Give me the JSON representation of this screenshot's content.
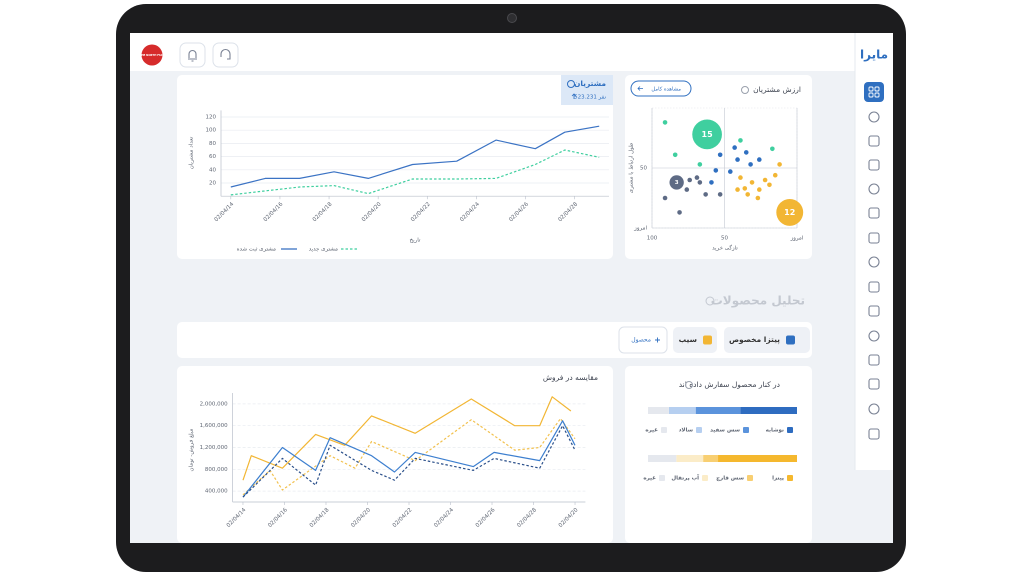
{
  "header": {
    "brand": "مایرا",
    "avatar": "THE NORTH FACE"
  },
  "section_title": "تحلیل محصولات",
  "filters": {
    "items": [
      "پیتزا مخصوص",
      "سیب"
    ],
    "add": "محصول"
  },
  "chart_data": [
    {
      "type": "line",
      "title": "مشتریان",
      "total": "523.231 نفر",
      "x_label": "تاریخ",
      "y_label": "تعداد مشتریان",
      "x": [
        14,
        15.4,
        16.8,
        18.2,
        19.6,
        21.4,
        23.2,
        24.8,
        26.4,
        27.6,
        29
      ],
      "xlim": [
        13.6,
        29.4
      ],
      "xticks": [
        {
          "value": 14,
          "label": "02/04/14"
        },
        {
          "value": 16,
          "label": "02/04/16"
        },
        {
          "value": 18,
          "label": "02/04/18"
        },
        {
          "value": 20,
          "label": "02/04/20"
        },
        {
          "value": 22,
          "label": "02/04/22"
        },
        {
          "value": 24,
          "label": "02/04/24"
        },
        {
          "value": 26,
          "label": "02/04/26"
        },
        {
          "value": 28,
          "label": "02/04/28"
        }
      ],
      "ylim": [
        0,
        130
      ],
      "yticks": [
        20,
        40,
        60,
        80,
        100,
        120
      ],
      "grid": true,
      "grid_style": "solid",
      "series": [
        {
          "name": "مشتری ثبت شده",
          "color": "#3b73c4",
          "dash": false,
          "values": [
            14,
            27,
            27,
            37,
            27,
            48,
            53,
            85,
            72,
            97,
            106
          ]
        },
        {
          "name": "مشتری جدید",
          "color": "#3fcf9f",
          "dash": true,
          "values": [
            2,
            8,
            14,
            16,
            4,
            26,
            26,
            27,
            48,
            70,
            59
          ]
        }
      ]
    },
    {
      "type": "scatter",
      "title": "ارزش مشتریان",
      "button": "مشاهده کامل",
      "x_label": "تازگی خرید",
      "y_label": "طول ارتباط با مشتری",
      "xlim": [
        100,
        0
      ],
      "xticks": [
        100,
        50,
        {
          "value": 0,
          "label": "امروز"
        }
      ],
      "ylim": [
        0,
        100
      ],
      "yticks": [
        {
          "value": 0,
          "label": "امروز"
        },
        50
      ],
      "grid": true,
      "series": [
        {
          "color": "#3fcf9f",
          "x": [
            91,
            84,
            67,
            39,
            17
          ],
          "values": [
            88,
            61,
            53,
            73,
            66
          ]
        },
        {
          "color": "#2f6fc0",
          "x": [
            41,
            35,
            53,
            46,
            32,
            26,
            43,
            56,
            59
          ],
          "values": [
            57,
            63,
            61,
            47,
            53,
            57,
            67,
            48,
            38
          ]
        },
        {
          "color": "#5e6b85",
          "x": [
            91,
            81,
            74,
            67,
            63,
            69,
            76,
            53
          ],
          "values": [
            25,
            13,
            40,
            38,
            28,
            42,
            32,
            28
          ]
        },
        {
          "color": "#f2b634",
          "x": [
            39,
            36,
            31,
            26,
            22,
            19,
            15,
            34,
            27,
            41,
            12
          ],
          "values": [
            42,
            33,
            38,
            32,
            40,
            36,
            44,
            28,
            25,
            32,
            53
          ]
        }
      ],
      "bubbles": {
        "x": [
          62,
          83,
          5
        ],
        "values": [
          78,
          38,
          13
        ],
        "size": [
          15,
          3,
          12
        ],
        "colors": [
          "#3fcf9f",
          "#5e6b85",
          "#f2b634"
        ]
      }
    },
    {
      "type": "line",
      "title": "مقایسه در فروش",
      "y_label": "مبلغ فروش- تومان",
      "xlim": [
        13.5,
        30.5
      ],
      "xticks": [
        {
          "value": 14,
          "label": "02/04/14"
        },
        {
          "value": 16,
          "label": "02/04/16"
        },
        {
          "value": 18,
          "label": "02/04/18"
        },
        {
          "value": 20,
          "label": "02/04/20"
        },
        {
          "value": 22,
          "label": "02/04/22"
        },
        {
          "value": 24,
          "label": "02/04/24"
        },
        {
          "value": 26,
          "label": "02/04/26"
        },
        {
          "value": 28,
          "label": "02/04/28"
        },
        {
          "value": 30,
          "label": "02/04/20"
        }
      ],
      "ylim": [
        200000,
        2200000
      ],
      "yticks": [
        {
          "value": 400000,
          "label": "400,000"
        },
        {
          "value": 800000,
          "label": "800,000"
        },
        {
          "value": 1200000,
          "label": "1,200,000"
        },
        {
          "value": 1600000,
          "label": "1,600,000"
        },
        {
          "value": 2000000,
          "label": "2,000,000"
        }
      ],
      "grid": true,
      "grid_style": "dashed",
      "series": [
        {
          "color": "#f2b634",
          "dash": false,
          "x": [
            14,
            14.4,
            15.9,
            17.5,
            18.9,
            20.2,
            22.3,
            25,
            27.1,
            28.3,
            28.9,
            29.8
          ],
          "values": [
            600000,
            1050000,
            820000,
            1440000,
            1240000,
            1780000,
            1460000,
            2090000,
            1600000,
            1600000,
            2130000,
            1870000
          ]
        },
        {
          "color": "#f2c14e",
          "dash": true,
          "x": [
            14,
            15.3,
            15.9,
            18.2,
            19.4,
            20.2,
            22.3,
            25,
            27.1,
            28.3,
            29.3,
            30
          ],
          "values": [
            330000,
            780000,
            420000,
            1050000,
            820000,
            1310000,
            960000,
            1710000,
            1150000,
            1200000,
            1730000,
            1360000
          ]
        },
        {
          "color": "#3d7fcf",
          "dash": false,
          "x": [
            14,
            15.9,
            17.5,
            18.2,
            20.2,
            21.3,
            22.3,
            25.1,
            26.1,
            28.3,
            29.4,
            30
          ],
          "values": [
            290000,
            1200000,
            780000,
            1380000,
            1050000,
            750000,
            1110000,
            850000,
            1110000,
            960000,
            1690000,
            1240000
          ]
        },
        {
          "color": "#2a4f8a",
          "dash": true,
          "x": [
            14,
            15.9,
            17.5,
            18.2,
            20.2,
            21.3,
            22.3,
            25.1,
            26.1,
            28.3,
            29.4,
            30
          ],
          "values": [
            290000,
            1000000,
            510000,
            1240000,
            780000,
            600000,
            1000000,
            780000,
            1000000,
            820000,
            1600000,
            1150000
          ]
        }
      ]
    },
    {
      "type": "bar",
      "title": "در کنار محصول سفارش داده اند",
      "orientation": "horizontal",
      "stacked": true,
      "xlim": [
        0,
        100
      ],
      "groups": [
        {
          "categories": [
            "نوشابه",
            "سس سفید",
            "سالاد",
            "غیره"
          ],
          "colors": [
            "#2e6cc0",
            "#5b93dc",
            "#b6cff0",
            "#e5e8ee"
          ],
          "values": [
            38,
            30,
            18,
            14
          ]
        },
        {
          "categories": [
            "پیتزا",
            "سس قارچ",
            "آب پرتقال",
            "غیره"
          ],
          "colors": [
            "#f5b82e",
            "#f8cf72",
            "#fbecc8",
            "#e5e8ee"
          ],
          "values": [
            53,
            10,
            18,
            19
          ]
        }
      ]
    }
  ]
}
